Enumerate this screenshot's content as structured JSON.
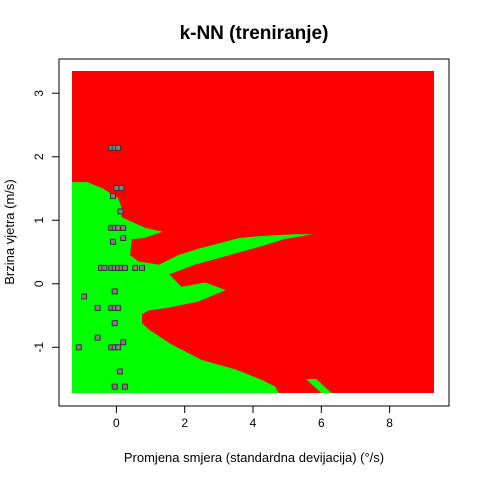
{
  "chart_data": {
    "type": "heatmap",
    "title": "k-NN (treniranje)",
    "xlabel": "Promjena smjera (standardna devijacija) (°/s)",
    "ylabel": "Brzina vjetra (m/s)",
    "xlim": [
      -1.3,
      9.3
    ],
    "ylim": [
      -1.72,
      3.35
    ],
    "x_ticks": [
      0,
      2,
      4,
      6,
      8
    ],
    "y_ticks": [
      -1,
      0,
      1,
      2,
      3
    ],
    "grid": false,
    "legend": "none",
    "colors": {
      "class_a": "#ff0000",
      "class_b": "#00ff00",
      "points": "#333333",
      "point_fill": "#808080"
    },
    "green_region_boundary": [
      [
        -1.3,
        1.6
      ],
      [
        -0.85,
        1.6
      ],
      [
        -0.4,
        1.5
      ],
      [
        0.05,
        1.35
      ],
      [
        0.15,
        1.2
      ],
      [
        0.15,
        1.05
      ],
      [
        0.55,
        0.95
      ],
      [
        0.85,
        0.88
      ],
      [
        1.35,
        0.82
      ],
      [
        0.8,
        0.72
      ],
      [
        0.45,
        0.7
      ],
      [
        0.4,
        0.45
      ],
      [
        0.65,
        0.35
      ],
      [
        1.25,
        0.3
      ],
      [
        1.8,
        0.45
      ],
      [
        2.4,
        0.55
      ],
      [
        3.1,
        0.65
      ],
      [
        3.6,
        0.72
      ],
      [
        4.2,
        0.75
      ],
      [
        5.2,
        0.78
      ],
      [
        5.75,
        0.78
      ],
      [
        4.9,
        0.7
      ],
      [
        4.3,
        0.6
      ],
      [
        3.3,
        0.45
      ],
      [
        2.3,
        0.3
      ],
      [
        1.55,
        0.15
      ],
      [
        1.9,
        -0.05
      ],
      [
        2.6,
        0.02
      ],
      [
        3.2,
        -0.1
      ],
      [
        2.4,
        -0.28
      ],
      [
        1.5,
        -0.38
      ],
      [
        0.95,
        -0.42
      ],
      [
        0.75,
        -0.48
      ],
      [
        0.75,
        -0.62
      ],
      [
        0.95,
        -0.72
      ],
      [
        1.6,
        -0.95
      ],
      [
        2.5,
        -1.2
      ],
      [
        3.5,
        -1.35
      ],
      [
        4.2,
        -1.5
      ],
      [
        4.65,
        -1.62
      ],
      [
        4.75,
        -1.72
      ],
      [
        -1.3,
        -1.72
      ]
    ],
    "green_fragment": [
      [
        5.55,
        -1.5
      ],
      [
        5.85,
        -1.5
      ],
      [
        6.3,
        -1.72
      ],
      [
        6.0,
        -1.72
      ]
    ],
    "points": [
      {
        "x": -0.15,
        "y": 2.14
      },
      {
        "x": -0.05,
        "y": 2.14
      },
      {
        "x": 0.05,
        "y": 2.14
      },
      {
        "x": 0.0,
        "y": 1.51
      },
      {
        "x": 0.15,
        "y": 1.51
      },
      {
        "x": -0.1,
        "y": 1.38
      },
      {
        "x": 0.12,
        "y": 1.14
      },
      {
        "x": -0.15,
        "y": 0.88
      },
      {
        "x": -0.05,
        "y": 0.88
      },
      {
        "x": 0.05,
        "y": 0.88
      },
      {
        "x": 0.2,
        "y": 0.88
      },
      {
        "x": -0.1,
        "y": 0.66
      },
      {
        "x": 0.2,
        "y": 0.72
      },
      {
        "x": -0.45,
        "y": 0.25
      },
      {
        "x": -0.35,
        "y": 0.25
      },
      {
        "x": -0.15,
        "y": 0.25
      },
      {
        "x": -0.05,
        "y": 0.25
      },
      {
        "x": 0.05,
        "y": 0.25
      },
      {
        "x": 0.15,
        "y": 0.25
      },
      {
        "x": 0.25,
        "y": 0.25
      },
      {
        "x": 0.55,
        "y": 0.25
      },
      {
        "x": 0.75,
        "y": 0.25
      },
      {
        "x": -0.95,
        "y": -0.2
      },
      {
        "x": -0.05,
        "y": -0.12
      },
      {
        "x": -0.55,
        "y": -0.38
      },
      {
        "x": -0.15,
        "y": -0.38
      },
      {
        "x": -0.05,
        "y": -0.38
      },
      {
        "x": 0.05,
        "y": -0.38
      },
      {
        "x": -0.05,
        "y": -0.62
      },
      {
        "x": -0.55,
        "y": -0.85
      },
      {
        "x": 0.2,
        "y": -0.92
      },
      {
        "x": -1.1,
        "y": -1.0
      },
      {
        "x": -0.15,
        "y": -1.0
      },
      {
        "x": -0.05,
        "y": -1.0
      },
      {
        "x": 0.05,
        "y": -1.0
      },
      {
        "x": 0.1,
        "y": -1.38
      },
      {
        "x": -0.05,
        "y": -1.62
      },
      {
        "x": 0.25,
        "y": -1.62
      }
    ]
  }
}
